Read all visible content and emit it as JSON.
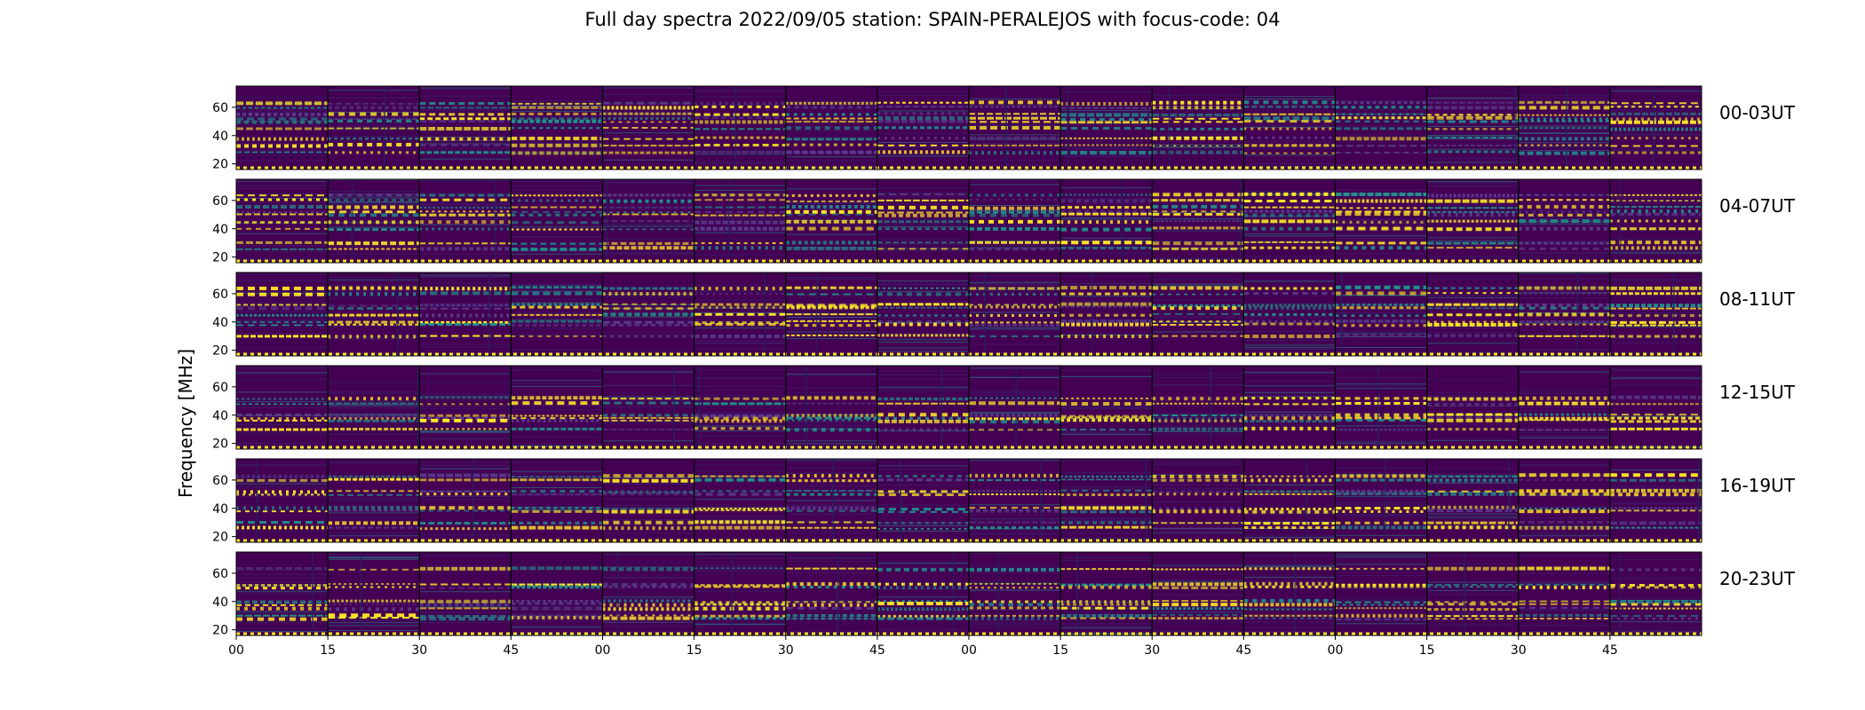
{
  "chart_data": {
    "type": "heatmap",
    "title": "Full day spectra 2022/09/05 station: SPAIN-PERALEJOS with focus-code: 04",
    "ylabel": "Frequency [MHz]",
    "xlabel": "",
    "colormap": "viridis",
    "colors": {
      "low": "#440154",
      "mid": "#21918c",
      "high": "#fde725"
    },
    "ylim": [
      16,
      75
    ],
    "y_ticks": [
      "20",
      "40",
      "60"
    ],
    "y_tick_values": [
      20,
      40,
      60
    ],
    "x_ticks": [
      "00",
      "15",
      "30",
      "45",
      "00",
      "15",
      "30",
      "45",
      "00",
      "15",
      "30",
      "45",
      "00",
      "15",
      "30",
      "45"
    ],
    "panels_per_row": 16,
    "minutes_per_panel": 15,
    "rows": [
      {
        "label": "00-03UT",
        "bright_bands": [
          63,
          60,
          55,
          52,
          50,
          45,
          38,
          33,
          28
        ]
      },
      {
        "label": "04-07UT",
        "bright_bands": [
          64,
          60,
          55,
          52,
          50,
          45,
          40,
          30,
          26
        ]
      },
      {
        "label": "08-11UT",
        "bright_bands": [
          64,
          60,
          52,
          50,
          45,
          40,
          38,
          30
        ]
      },
      {
        "label": "12-15UT",
        "bright_bands": [
          52,
          48,
          40,
          38,
          36,
          30
        ]
      },
      {
        "label": "16-19UT",
        "bright_bands": [
          63,
          60,
          52,
          50,
          40,
          38,
          30,
          26
        ]
      },
      {
        "label": "20-23UT",
        "bright_bands": [
          63,
          52,
          50,
          40,
          38,
          35,
          30,
          28
        ]
      }
    ]
  }
}
